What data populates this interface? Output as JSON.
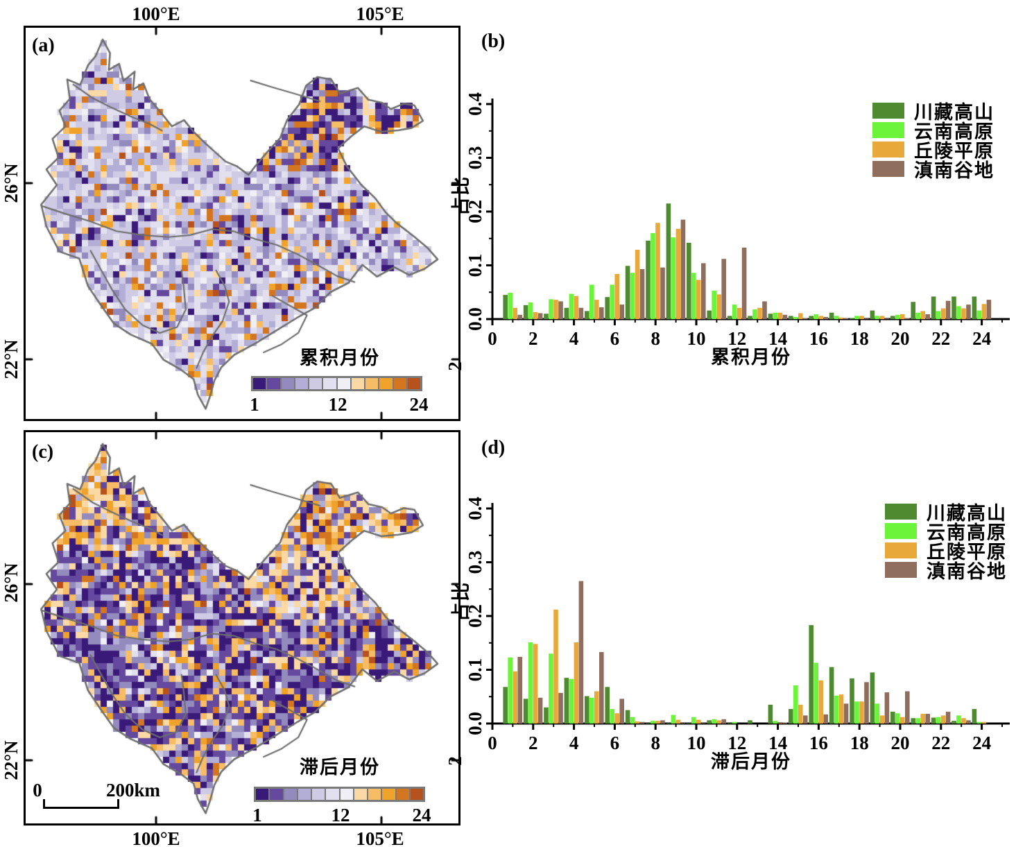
{
  "figure": {
    "background": "#ffffff"
  },
  "colors": {
    "frame": "#000000",
    "map_outline": "#6e6e6e",
    "colorbar": [
      "#3a1a78",
      "#65499e",
      "#938abe",
      "#b3aed6",
      "#cfcbe4",
      "#e2e0ee",
      "#f0eff5",
      "#fbd9a5",
      "#f7bd66",
      "#f0a32b",
      "#d3761f",
      "#b8521c"
    ],
    "series": [
      "#4e8a2f",
      "#6cf43a",
      "#e9a93a",
      "#8f6e5e"
    ]
  },
  "legend": [
    "川藏高山",
    "云南高原",
    "丘陵平原",
    "滇南谷地"
  ],
  "panels": {
    "a": {
      "label": "(a)",
      "colorbar_title": "累积月份",
      "colorbar_labels": [
        "1",
        "12",
        "24"
      ],
      "top_axis": [
        "100°E",
        "105°E"
      ],
      "left_axis": [
        "26°N",
        "22°N"
      ],
      "right_axis_clipped": "2"
    },
    "b": {
      "label": "(b)",
      "xlabel": "累积月份",
      "ylabel": "占比"
    },
    "c": {
      "label": "(c)",
      "colorbar_title": "滞后月份",
      "colorbar_labels": [
        "1",
        "12",
        "24"
      ],
      "bottom_axis": [
        "100°E",
        "105°E"
      ],
      "left_axis": [
        "26°N",
        "22°N"
      ],
      "right_axis_clipped": "2",
      "scalebar_zero": "0",
      "scalebar_label": "200km"
    },
    "d": {
      "label": "(d)",
      "xlabel": "滞后月份",
      "ylabel": "占比"
    }
  },
  "chart_data": [
    {
      "id": "b",
      "type": "bar",
      "title": "",
      "xlabel": "累积月份",
      "ylabel": "占比",
      "xlim": [
        0,
        25.4
      ],
      "ylim": [
        0,
        0.4
      ],
      "grid": false,
      "legend_position": "top-right",
      "xticks": [
        "0",
        "2",
        "4",
        "6",
        "8",
        "10",
        "12",
        "14",
        "16",
        "18",
        "20",
        "22",
        "24"
      ],
      "yticks": [
        "0.0",
        "0.1",
        "0.2",
        "0.3",
        "0.4"
      ],
      "categories": [
        1,
        2,
        3,
        4,
        5,
        6,
        7,
        8,
        9,
        10,
        11,
        12,
        13,
        14,
        15,
        16,
        17,
        18,
        19,
        20,
        21,
        22,
        23,
        24
      ],
      "series": [
        {
          "name": "川藏高山",
          "color": "#4e8a2f",
          "values": [
            0.045,
            0.026,
            0.01,
            0.021,
            0.015,
            0.041,
            0.099,
            0.146,
            0.215,
            0.142,
            0.016,
            0.006,
            0.006,
            0.01,
            0.006,
            0.006,
            0.012,
            0.002,
            0.016,
            0.006,
            0.032,
            0.042,
            0.042,
            0.042
          ]
        },
        {
          "name": "云南高原",
          "color": "#6cf43a",
          "values": [
            0.049,
            0.031,
            0.037,
            0.047,
            0.064,
            0.064,
            0.086,
            0.16,
            0.152,
            0.086,
            0.053,
            0.027,
            0.018,
            0.012,
            0.004,
            0.009,
            0.006,
            0.006,
            0.006,
            0.008,
            0.012,
            0.015,
            0.024,
            0.016
          ]
        },
        {
          "name": "丘陵平原",
          "color": "#e9a93a",
          "values": [
            0.021,
            0.013,
            0.036,
            0.043,
            0.036,
            0.084,
            0.129,
            0.179,
            0.168,
            0.073,
            0.046,
            0.021,
            0.021,
            0.012,
            0.011,
            0.006,
            0.003,
            0.006,
            0.006,
            0.009,
            0.015,
            0.02,
            0.02,
            0.028
          ]
        },
        {
          "name": "滇南谷地",
          "color": "#8f6e5e",
          "values": [
            0.008,
            0.011,
            0.033,
            0.021,
            0.022,
            0.027,
            0.093,
            0.096,
            0.185,
            0.104,
            0.112,
            0.133,
            0.033,
            0.008,
            0.002,
            0.004,
            0.002,
            0.001,
            0.001,
            0.002,
            0.009,
            0.034,
            0.027,
            0.036
          ]
        }
      ]
    },
    {
      "id": "d",
      "type": "bar",
      "title": "",
      "xlabel": "滞后月份",
      "ylabel": "占比",
      "xlim": [
        0,
        25.4
      ],
      "ylim": [
        0,
        0.4
      ],
      "grid": false,
      "legend_position": "top-right",
      "xticks": [
        "0",
        "2",
        "4",
        "6",
        "8",
        "10",
        "12",
        "14",
        "16",
        "18",
        "20",
        "22",
        "24"
      ],
      "yticks": [
        "0.0",
        "0.1",
        "0.2",
        "0.3",
        "0.4"
      ],
      "categories": [
        1,
        2,
        3,
        4,
        5,
        6,
        7,
        8,
        9,
        10,
        11,
        12,
        13,
        14,
        15,
        16,
        17,
        18,
        19,
        20,
        21,
        22,
        23,
        24
      ],
      "series": [
        {
          "name": "川藏高山",
          "color": "#4e8a2f",
          "values": [
            0.068,
            0.046,
            0.03,
            0.085,
            0.051,
            0.068,
            0.025,
            0.001,
            0.001,
            0.001,
            0.006,
            0.001,
            0.006,
            0.035,
            0.027,
            0.183,
            0.105,
            0.084,
            0.095,
            0.022,
            0.01,
            0.011,
            0.005,
            0.027
          ]
        },
        {
          "name": "云南高原",
          "color": "#6cf43a",
          "values": [
            0.123,
            0.151,
            0.13,
            0.083,
            0.048,
            0.027,
            0.012,
            0.005,
            0.016,
            0.012,
            0.008,
            0.003,
            0.0,
            0.005,
            0.071,
            0.113,
            0.052,
            0.041,
            0.037,
            0.019,
            0.01,
            0.012,
            0.015,
            0.003
          ]
        },
        {
          "name": "丘陵平原",
          "color": "#e9a93a",
          "values": [
            0.097,
            0.148,
            0.212,
            0.151,
            0.06,
            0.019,
            0.004,
            0.005,
            0.007,
            0.007,
            0.006,
            0.0,
            0.0,
            0.001,
            0.035,
            0.08,
            0.054,
            0.041,
            0.015,
            0.012,
            0.018,
            0.015,
            0.01,
            0.003
          ]
        },
        {
          "name": "滇南谷地",
          "color": "#8f6e5e",
          "values": [
            0.124,
            0.048,
            0.057,
            0.265,
            0.133,
            0.046,
            0.003,
            0.006,
            0.001,
            0.001,
            0.008,
            0.0,
            0.0,
            0.002,
            0.015,
            0.017,
            0.037,
            0.077,
            0.058,
            0.06,
            0.018,
            0.022,
            0.006,
            0.0
          ]
        }
      ]
    },
    {
      "id": "a",
      "type": "heatmap",
      "title": "累积月份",
      "colorbar": {
        "labels": [
          "1",
          "12",
          "24"
        ],
        "range": [
          1,
          24
        ],
        "colors": [
          "#3a1a78",
          "#65499e",
          "#938abe",
          "#b3aed6",
          "#cfcbe4",
          "#e2e0ee",
          "#f0eff5",
          "#fbd9a5",
          "#f7bd66",
          "#f0a32b",
          "#d3761f",
          "#b8521c"
        ]
      },
      "x_axis_labels": [
        "100°E",
        "105°E"
      ],
      "y_axis_labels": [
        "26°N",
        "22°N"
      ]
    },
    {
      "id": "c",
      "type": "heatmap",
      "title": "滞后月份",
      "colorbar": {
        "labels": [
          "1",
          "12",
          "24"
        ],
        "range": [
          1,
          24
        ],
        "colors": [
          "#3a1a78",
          "#65499e",
          "#938abe",
          "#b3aed6",
          "#cfcbe4",
          "#e2e0ee",
          "#f0eff5",
          "#fbd9a5",
          "#f7bd66",
          "#f0a32b",
          "#d3761f",
          "#b8521c"
        ]
      },
      "x_axis_labels": [
        "100°E",
        "105°E"
      ],
      "y_axis_labels": [
        "26°N",
        "22°N"
      ],
      "scalebar": {
        "zero": "0",
        "label": "200km"
      }
    }
  ]
}
